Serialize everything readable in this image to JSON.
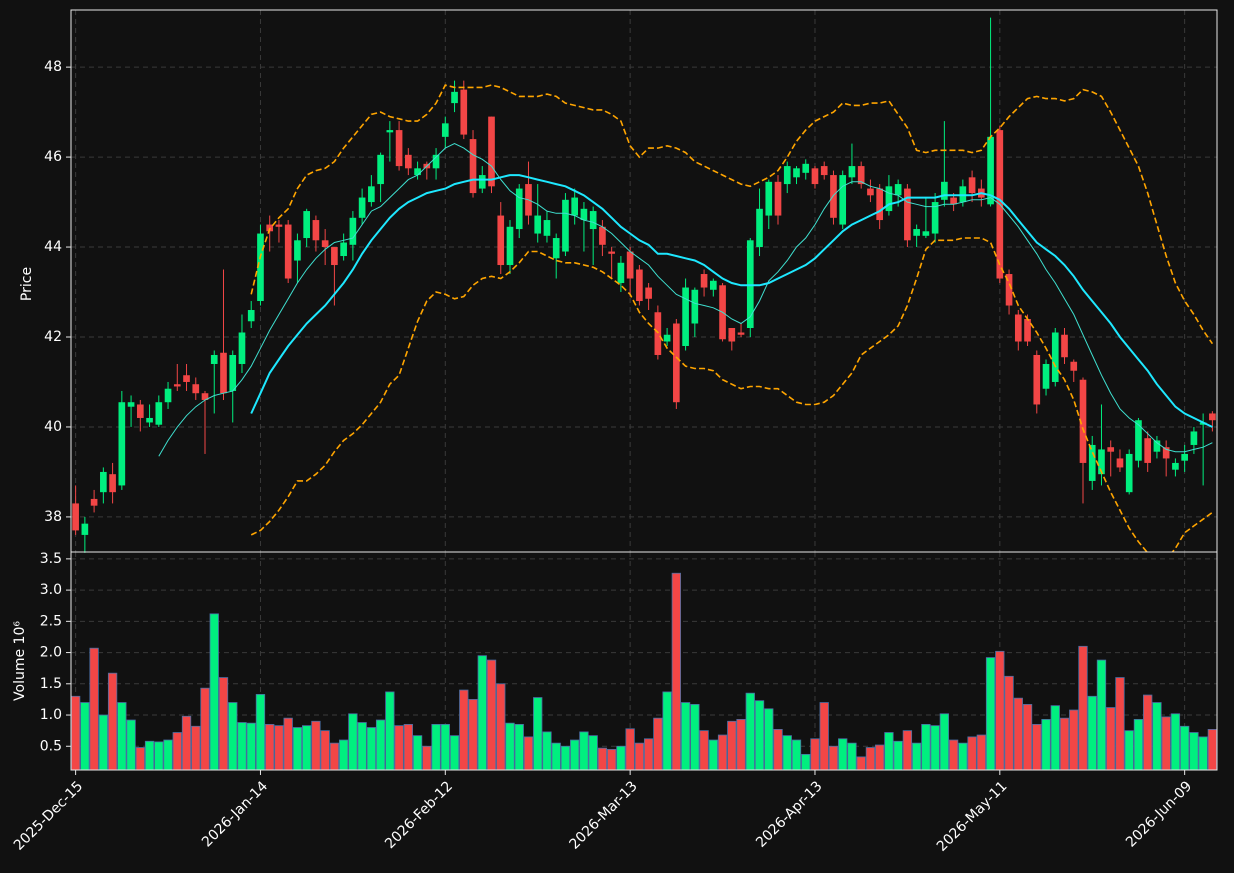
{
  "chart_data": {
    "type": "candlestick",
    "ylabel": "Price",
    "up_color": "#00ef7f",
    "down_color": "#f24646",
    "grid": true,
    "ylim": [
      37.22,
      49.27
    ],
    "yticks": [
      38,
      40,
      42,
      44,
      46,
      48
    ],
    "categories": [
      "2025-Dec-15",
      null,
      null,
      null,
      null,
      null,
      null,
      null,
      null,
      null,
      null,
      null,
      null,
      null,
      null,
      null,
      null,
      null,
      null,
      null,
      "2026-Jan-14",
      null,
      null,
      null,
      null,
      null,
      null,
      null,
      null,
      null,
      null,
      null,
      null,
      null,
      null,
      null,
      null,
      null,
      null,
      null,
      "2026-Feb-12",
      null,
      null,
      null,
      null,
      null,
      null,
      null,
      null,
      null,
      null,
      null,
      null,
      null,
      null,
      null,
      null,
      null,
      null,
      null,
      "2026-Mar-13",
      null,
      null,
      null,
      null,
      null,
      null,
      null,
      null,
      null,
      null,
      null,
      null,
      null,
      null,
      null,
      null,
      null,
      null,
      null,
      "2026-Apr-13",
      null,
      null,
      null,
      null,
      null,
      null,
      null,
      null,
      null,
      null,
      null,
      null,
      null,
      null,
      null,
      null,
      null,
      null,
      null,
      "2026-May-11",
      null,
      null,
      null,
      null,
      null,
      null,
      null,
      null,
      null,
      null,
      null,
      null,
      null,
      null,
      null,
      null,
      null,
      null,
      null,
      "2026-Jun-09",
      null,
      null,
      null
    ],
    "open": [
      38.3,
      37.6,
      38.4,
      38.55,
      38.95,
      38.7,
      40.45,
      40.5,
      40.1,
      40.05,
      40.55,
      40.95,
      41.15,
      40.95,
      40.75,
      41.4,
      41.65,
      40.8,
      41.4,
      42.35,
      42.8,
      44.5,
      44.5,
      44.5,
      43.7,
      44.2,
      44.6,
      44.15,
      44.0,
      43.8,
      44.05,
      44.65,
      45.0,
      45.4,
      46.55,
      46.6,
      46.05,
      45.6,
      45.85,
      45.75,
      46.45,
      47.2,
      47.5,
      46.4,
      45.3,
      46.9,
      44.7,
      43.6,
      44.4,
      45.4,
      44.3,
      44.25,
      43.75,
      43.9,
      44.7,
      44.6,
      44.4,
      44.45,
      43.9,
      43.2,
      43.9,
      43.5,
      43.1,
      42.55,
      41.9,
      42.3,
      41.8,
      42.3,
      43.4,
      43.05,
      43.15,
      42.2,
      42.1,
      42.2,
      44.0,
      44.7,
      45.45,
      45.4,
      45.55,
      45.65,
      45.75,
      45.8,
      45.6,
      44.5,
      45.55,
      45.8,
      45.3,
      45.3,
      44.8,
      45.15,
      45.3,
      44.25,
      44.25,
      44.3,
      45.05,
      45.1,
      45.0,
      45.55,
      45.3,
      44.95,
      46.6,
      43.4,
      42.5,
      42.4,
      41.6,
      40.85,
      41.0,
      42.05,
      41.45,
      41.05,
      38.8,
      38.95,
      39.55,
      39.3,
      38.55,
      39.25,
      39.75,
      39.45,
      39.55,
      39.05,
      39.25,
      39.6,
      40.05,
      40.3
    ],
    "high": [
      38.7,
      38.0,
      38.6,
      39.1,
      39.2,
      40.8,
      40.7,
      40.6,
      40.5,
      40.7,
      41.0,
      41.4,
      41.4,
      41.1,
      40.8,
      41.7,
      43.5,
      41.7,
      42.5,
      42.8,
      44.5,
      44.7,
      44.6,
      44.6,
      44.3,
      44.85,
      44.7,
      44.4,
      44.0,
      44.3,
      44.8,
      45.3,
      45.6,
      46.1,
      46.8,
      46.8,
      46.2,
      45.9,
      45.9,
      46.2,
      46.9,
      47.7,
      47.7,
      46.6,
      45.8,
      46.9,
      45.0,
      44.6,
      45.4,
      45.9,
      45.4,
      44.8,
      44.3,
      45.2,
      45.3,
      45.0,
      44.9,
      44.6,
      44.0,
      43.8,
      44.0,
      43.6,
      43.2,
      42.7,
      42.2,
      42.4,
      43.3,
      43.1,
      43.5,
      43.3,
      43.2,
      42.2,
      42.3,
      44.2,
      45.3,
      45.5,
      45.6,
      45.9,
      45.8,
      45.95,
      45.8,
      45.9,
      45.7,
      45.7,
      46.3,
      45.9,
      45.5,
      45.4,
      45.6,
      45.5,
      45.4,
      44.5,
      45.1,
      45.2,
      46.8,
      45.2,
      45.5,
      45.7,
      45.5,
      49.1,
      46.7,
      43.5,
      42.6,
      42.5,
      41.7,
      41.5,
      42.2,
      42.2,
      41.5,
      41.1,
      39.8,
      40.5,
      39.7,
      39.5,
      39.5,
      40.2,
      39.9,
      39.8,
      39.7,
      39.3,
      39.6,
      40.0,
      40.3,
      40.35
    ],
    "low": [
      37.6,
      37.2,
      38.1,
      38.3,
      38.3,
      38.6,
      40.0,
      39.9,
      40.0,
      40.0,
      40.4,
      40.8,
      40.8,
      40.6,
      39.4,
      40.3,
      40.6,
      40.1,
      41.2,
      42.2,
      42.7,
      43.9,
      44.1,
      43.2,
      43.2,
      44.0,
      43.9,
      43.6,
      42.7,
      43.7,
      43.7,
      44.5,
      44.9,
      45.0,
      45.9,
      45.7,
      45.6,
      45.5,
      45.5,
      45.5,
      46.2,
      47.0,
      46.4,
      45.1,
      45.2,
      45.2,
      43.4,
      43.4,
      44.2,
      44.5,
      44.1,
      44.1,
      43.3,
      43.8,
      44.5,
      43.9,
      43.6,
      43.8,
      43.3,
      43.0,
      42.9,
      42.7,
      42.6,
      41.5,
      41.8,
      40.4,
      41.7,
      42.0,
      42.9,
      42.9,
      41.9,
      41.7,
      42.0,
      42.0,
      43.8,
      44.4,
      44.5,
      45.2,
      45.4,
      45.5,
      45.3,
      45.5,
      44.5,
      44.4,
      45.4,
      45.3,
      45.0,
      44.4,
      44.7,
      44.9,
      44.0,
      44.0,
      44.2,
      44.1,
      44.9,
      44.8,
      44.9,
      45.0,
      44.9,
      44.9,
      43.2,
      42.5,
      41.7,
      41.8,
      40.3,
      40.7,
      40.9,
      41.4,
      41.0,
      38.3,
      38.6,
      38.7,
      38.9,
      39.0,
      38.5,
      39.1,
      39.0,
      39.3,
      38.9,
      38.9,
      39.0,
      39.4,
      38.7,
      39.9
    ],
    "close": [
      37.7,
      37.85,
      38.25,
      39.0,
      38.55,
      40.55,
      40.55,
      40.2,
      40.2,
      40.55,
      40.85,
      40.9,
      41.0,
      40.75,
      40.6,
      41.6,
      40.75,
      41.6,
      42.1,
      42.6,
      44.3,
      44.35,
      44.45,
      43.3,
      44.15,
      44.8,
      44.15,
      44.0,
      43.6,
      44.1,
      44.65,
      45.1,
      45.35,
      46.05,
      46.6,
      45.8,
      45.75,
      45.75,
      45.75,
      46.05,
      46.75,
      47.45,
      46.5,
      45.2,
      45.6,
      45.35,
      43.6,
      44.45,
      45.3,
      44.7,
      44.7,
      44.6,
      44.2,
      45.05,
      45.1,
      44.85,
      44.8,
      44.05,
      43.85,
      43.65,
      43.3,
      42.8,
      42.85,
      41.6,
      42.05,
      40.55,
      43.1,
      43.05,
      43.1,
      43.25,
      41.95,
      41.9,
      42.05,
      44.15,
      44.85,
      45.45,
      44.7,
      45.8,
      45.75,
      45.85,
      45.4,
      45.6,
      44.65,
      45.6,
      45.8,
      45.4,
      45.15,
      44.6,
      45.35,
      45.4,
      44.15,
      44.4,
      44.35,
      45.0,
      45.45,
      44.95,
      45.35,
      45.2,
      45.1,
      46.45,
      43.3,
      42.7,
      41.9,
      41.9,
      40.5,
      41.4,
      42.1,
      41.55,
      41.25,
      39.2,
      39.6,
      39.5,
      39.45,
      39.1,
      39.4,
      40.15,
      39.2,
      39.7,
      39.3,
      39.2,
      39.4,
      39.9,
      40.1,
      40.15
    ],
    "lines": [
      {
        "color": "#3fe0d0",
        "width": 1,
        "dash": false,
        "values": [
          null,
          null,
          null,
          null,
          null,
          null,
          null,
          null,
          null,
          39.35,
          39.7,
          40.0,
          40.25,
          40.45,
          40.6,
          40.7,
          40.75,
          40.8,
          41.05,
          41.35,
          41.75,
          42.15,
          42.5,
          42.85,
          43.2,
          43.5,
          43.75,
          43.95,
          44.1,
          44.15,
          44.2,
          44.5,
          44.8,
          44.9,
          45.1,
          45.3,
          45.5,
          45.6,
          45.8,
          46.0,
          46.2,
          46.3,
          46.2,
          46.05,
          45.95,
          45.8,
          45.5,
          45.25,
          45.1,
          45.05,
          44.95,
          44.8,
          44.75,
          44.75,
          44.7,
          44.6,
          44.55,
          44.45,
          44.3,
          44.1,
          43.9,
          43.75,
          43.6,
          43.35,
          43.15,
          42.95,
          42.85,
          42.75,
          42.7,
          42.65,
          42.55,
          42.4,
          42.3,
          42.45,
          42.8,
          43.25,
          43.45,
          43.7,
          44.0,
          44.2,
          44.5,
          44.85,
          45.15,
          45.35,
          45.45,
          45.45,
          45.35,
          45.3,
          45.2,
          45.15,
          45.0,
          44.95,
          44.9,
          44.9,
          44.95,
          44.95,
          45.0,
          45.05,
          45.05,
          45.1,
          44.95,
          44.7,
          44.45,
          44.15,
          43.85,
          43.5,
          43.2,
          42.85,
          42.5,
          42.05,
          41.6,
          41.15,
          40.75,
          40.4,
          40.2,
          40.05,
          39.85,
          39.65,
          39.5,
          39.45,
          39.45,
          39.5,
          39.55,
          39.65
        ]
      },
      {
        "color": "#1ee8ff",
        "width": 2,
        "dash": false,
        "values": [
          null,
          null,
          null,
          null,
          null,
          null,
          null,
          null,
          null,
          null,
          null,
          null,
          null,
          null,
          null,
          null,
          null,
          null,
          null,
          40.3,
          40.75,
          41.2,
          41.5,
          41.8,
          42.05,
          42.3,
          42.5,
          42.7,
          42.95,
          43.2,
          43.5,
          43.85,
          44.15,
          44.4,
          44.65,
          44.85,
          45.0,
          45.1,
          45.2,
          45.25,
          45.3,
          45.4,
          45.45,
          45.5,
          45.5,
          45.5,
          45.55,
          45.6,
          45.6,
          45.55,
          45.5,
          45.45,
          45.4,
          45.35,
          45.25,
          45.15,
          45.0,
          44.85,
          44.65,
          44.45,
          44.3,
          44.15,
          44.05,
          43.85,
          43.85,
          43.8,
          43.75,
          43.7,
          43.6,
          43.45,
          43.3,
          43.2,
          43.15,
          43.15,
          43.15,
          43.2,
          43.3,
          43.4,
          43.5,
          43.6,
          43.75,
          43.95,
          44.15,
          44.35,
          44.5,
          44.6,
          44.7,
          44.8,
          44.95,
          45.0,
          45.1,
          45.1,
          45.1,
          45.1,
          45.15,
          45.15,
          45.15,
          45.15,
          45.2,
          45.15,
          45.05,
          44.85,
          44.6,
          44.35,
          44.1,
          43.95,
          43.8,
          43.6,
          43.35,
          43.05,
          42.8,
          42.55,
          42.3,
          42.0,
          41.75,
          41.5,
          41.25,
          40.95,
          40.7,
          40.45,
          40.3,
          40.2,
          40.1,
          40.0
        ]
      },
      {
        "color": "#ffa500",
        "width": 1.6,
        "dash": true,
        "values": [
          null,
          null,
          null,
          null,
          null,
          null,
          null,
          null,
          null,
          null,
          null,
          null,
          null,
          null,
          null,
          null,
          null,
          null,
          null,
          42.95,
          43.8,
          44.4,
          44.65,
          44.85,
          45.3,
          45.6,
          45.7,
          45.75,
          45.9,
          46.2,
          46.45,
          46.7,
          46.95,
          47.0,
          46.9,
          46.85,
          46.8,
          46.8,
          46.95,
          47.2,
          47.6,
          47.55,
          47.55,
          47.55,
          47.55,
          47.6,
          47.55,
          47.45,
          47.35,
          47.35,
          47.35,
          47.4,
          47.35,
          47.2,
          47.15,
          47.1,
          47.05,
          47.05,
          46.95,
          46.8,
          46.25,
          46.0,
          46.2,
          46.2,
          46.25,
          46.2,
          46.1,
          45.9,
          45.8,
          45.7,
          45.6,
          45.5,
          45.4,
          45.35,
          45.45,
          45.55,
          45.7,
          46.0,
          46.35,
          46.6,
          46.8,
          46.9,
          47.0,
          47.2,
          47.15,
          47.15,
          47.2,
          47.2,
          47.25,
          46.95,
          46.65,
          46.15,
          46.1,
          46.15,
          46.15,
          46.15,
          46.15,
          46.1,
          46.15,
          46.45,
          46.65,
          46.9,
          47.1,
          47.3,
          47.35,
          47.3,
          47.3,
          47.25,
          47.3,
          47.5,
          47.45,
          47.35,
          47.0,
          46.6,
          46.2,
          45.8,
          45.2,
          44.5,
          43.8,
          43.2,
          42.8,
          42.5,
          42.15,
          41.85
        ]
      },
      {
        "color": "#ffa500",
        "width": 1.6,
        "dash": true,
        "values": [
          null,
          null,
          null,
          null,
          null,
          null,
          null,
          null,
          null,
          null,
          null,
          null,
          null,
          null,
          null,
          null,
          null,
          null,
          null,
          37.6,
          37.7,
          37.9,
          38.15,
          38.45,
          38.8,
          38.8,
          38.95,
          39.15,
          39.45,
          39.7,
          39.85,
          40.05,
          40.3,
          40.55,
          40.95,
          41.15,
          41.75,
          42.35,
          42.8,
          43.0,
          42.95,
          42.85,
          42.9,
          43.15,
          43.3,
          43.35,
          43.3,
          43.45,
          43.65,
          43.9,
          43.9,
          43.8,
          43.7,
          43.65,
          43.65,
          43.6,
          43.55,
          43.45,
          43.3,
          43.15,
          42.95,
          42.55,
          42.3,
          42.1,
          41.75,
          41.55,
          41.35,
          41.3,
          41.3,
          41.25,
          41.05,
          40.95,
          40.85,
          40.9,
          40.9,
          40.85,
          40.85,
          40.7,
          40.55,
          40.5,
          40.5,
          40.55,
          40.7,
          40.95,
          41.2,
          41.6,
          41.75,
          41.9,
          42.05,
          42.25,
          42.7,
          43.3,
          43.95,
          44.15,
          44.15,
          44.15,
          44.2,
          44.2,
          44.2,
          44.1,
          43.6,
          43.2,
          42.7,
          42.4,
          42.1,
          41.75,
          41.35,
          41.05,
          40.6,
          39.95,
          39.45,
          39.0,
          38.55,
          38.15,
          37.75,
          37.45,
          37.2,
          37.0,
          37.05,
          37.3,
          37.65,
          37.8,
          37.95,
          38.1
        ]
      }
    ],
    "volume": {
      "ylabel": "Volume  10⁶",
      "ylim": [
        0.12,
        3.61
      ],
      "yticks": [
        {
          "value": 0.5,
          "label": "0.5"
        },
        {
          "value": 1,
          "label": "1.0"
        },
        {
          "value": 1.5,
          "label": "1.5"
        },
        {
          "value": 2,
          "label": "2.0"
        },
        {
          "value": 2.5,
          "label": "2.5"
        },
        {
          "value": 3,
          "label": "3.0"
        },
        {
          "value": 3.5,
          "label": "3.5"
        }
      ],
      "edge_color": "#4a6fa5",
      "values": [
        1.3,
        1.2,
        2.07,
        1.0,
        1.67,
        1.2,
        0.92,
        0.48,
        0.58,
        0.57,
        0.6,
        0.72,
        0.98,
        0.82,
        1.43,
        2.62,
        1.6,
        1.2,
        0.88,
        0.87,
        1.33,
        0.85,
        0.83,
        0.95,
        0.8,
        0.83,
        0.9,
        0.75,
        0.55,
        0.6,
        1.02,
        0.88,
        0.8,
        0.92,
        1.37,
        0.83,
        0.85,
        0.67,
        0.5,
        0.85,
        0.85,
        0.67,
        1.4,
        1.25,
        1.95,
        1.88,
        1.5,
        0.87,
        0.85,
        0.65,
        1.28,
        0.73,
        0.55,
        0.5,
        0.6,
        0.73,
        0.67,
        0.47,
        0.45,
        0.5,
        0.78,
        0.55,
        0.62,
        0.95,
        1.37,
        3.27,
        1.2,
        1.17,
        0.75,
        0.6,
        0.68,
        0.9,
        0.93,
        1.35,
        1.23,
        1.1,
        0.77,
        0.67,
        0.6,
        0.37,
        0.62,
        1.2,
        0.5,
        0.62,
        0.55,
        0.33,
        0.48,
        0.52,
        0.72,
        0.58,
        0.75,
        0.55,
        0.85,
        0.83,
        1.02,
        0.6,
        0.55,
        0.65,
        0.68,
        1.92,
        2.02,
        1.62,
        1.27,
        1.17,
        0.85,
        0.93,
        1.15,
        0.95,
        1.08,
        2.1,
        1.3,
        1.88,
        1.12,
        1.6,
        0.75,
        0.93,
        1.32,
        1.2,
        0.97,
        1.02,
        0.82,
        0.72,
        0.65,
        0.77
      ]
    }
  }
}
